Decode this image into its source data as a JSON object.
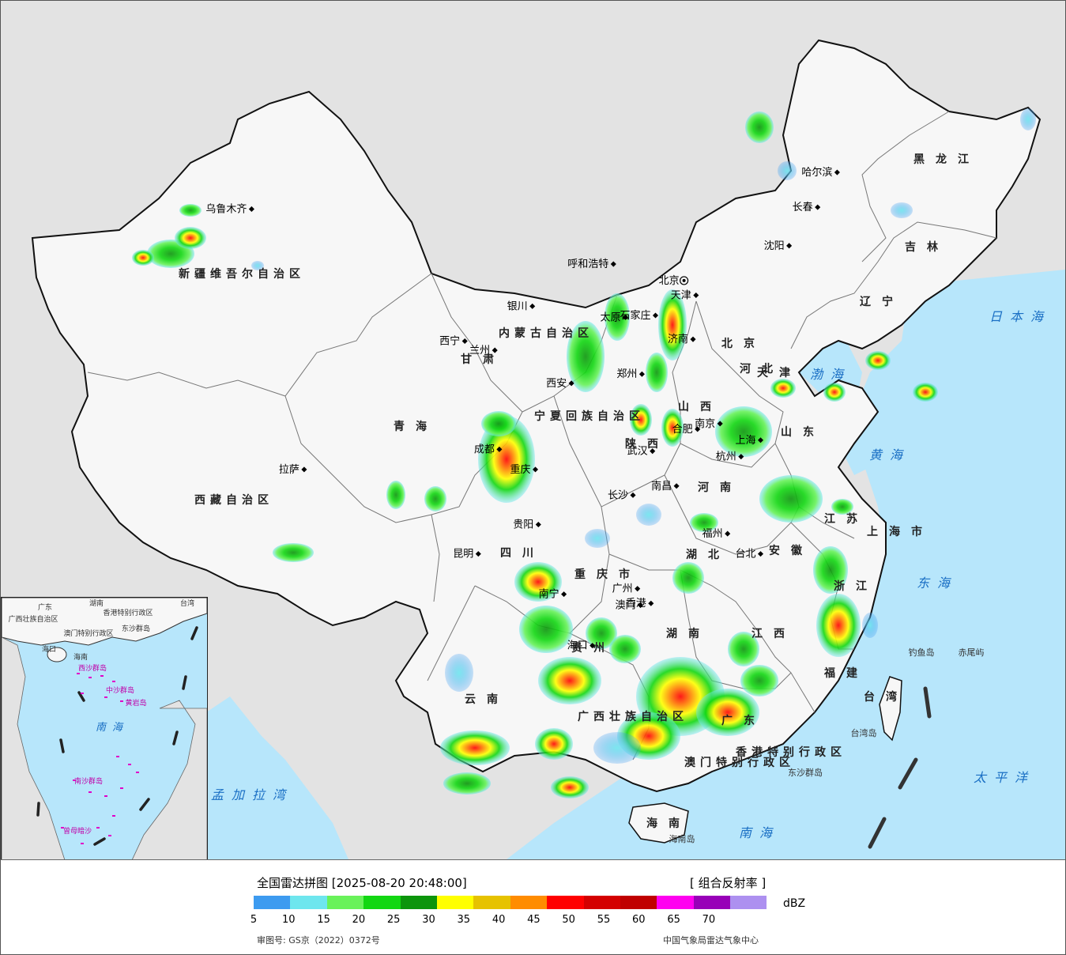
{
  "title": "全国雷达拼图 [2025-08-20 20:48:00]",
  "product": "[ 组合反射率 ]",
  "unit": "dBZ",
  "colorbar": {
    "colors": [
      "#3d9bf0",
      "#6ee6ee",
      "#69f25a",
      "#12d712",
      "#0c950c",
      "#ffff00",
      "#e6c200",
      "#ff8c00",
      "#ff0000",
      "#d40000",
      "#c00000",
      "#ff00f0",
      "#9800b8",
      "#ad90f0"
    ],
    "ticks": [
      "5",
      "10",
      "15",
      "20",
      "25",
      "30",
      "35",
      "40",
      "45",
      "50",
      "55",
      "60",
      "65",
      "70"
    ]
  },
  "review_number": "审图号: GS京（2022）0372号",
  "agency": "中国气象局雷达气象中心",
  "cities": [
    {
      "name": "乌鲁木齐",
      "x": 87.6,
      "y": 43.8
    },
    {
      "name": "拉萨",
      "x": 91.1,
      "y": 29.6
    },
    {
      "name": "西宁",
      "x": 101.8,
      "y": 36.6
    },
    {
      "name": "兰州",
      "x": 103.8,
      "y": 36.1
    },
    {
      "name": "银川",
      "x": 106.3,
      "y": 38.5
    },
    {
      "name": "呼和浩特",
      "x": 111.7,
      "y": 40.8
    },
    {
      "name": "北京",
      "x": 116.4,
      "y": 39.9
    },
    {
      "name": "天津",
      "x": 117.2,
      "y": 39.1
    },
    {
      "name": "石家庄",
      "x": 114.5,
      "y": 38.0
    },
    {
      "name": "太原",
      "x": 112.5,
      "y": 37.9
    },
    {
      "name": "济南",
      "x": 117.0,
      "y": 36.7
    },
    {
      "name": "郑州",
      "x": 113.6,
      "y": 34.8
    },
    {
      "name": "西安",
      "x": 108.9,
      "y": 34.3
    },
    {
      "name": "成都",
      "x": 104.1,
      "y": 30.7
    },
    {
      "name": "重庆",
      "x": 106.5,
      "y": 29.6
    },
    {
      "name": "武汉",
      "x": 114.3,
      "y": 30.6
    },
    {
      "name": "合肥",
      "x": 117.3,
      "y": 31.8
    },
    {
      "name": "南京",
      "x": 118.8,
      "y": 32.1
    },
    {
      "name": "上海",
      "x": 121.5,
      "y": 31.2
    },
    {
      "name": "杭州",
      "x": 120.2,
      "y": 30.3
    },
    {
      "name": "长沙",
      "x": 113.0,
      "y": 28.2
    },
    {
      "name": "南昌",
      "x": 115.9,
      "y": 28.7
    },
    {
      "name": "福州",
      "x": 119.3,
      "y": 26.1
    },
    {
      "name": "台北",
      "x": 121.5,
      "y": 25.0
    },
    {
      "name": "贵阳",
      "x": 106.7,
      "y": 26.6
    },
    {
      "name": "昆明",
      "x": 102.7,
      "y": 25.0
    },
    {
      "name": "南宁",
      "x": 108.4,
      "y": 22.8
    },
    {
      "name": "广州",
      "x": 113.3,
      "y": 23.1
    },
    {
      "name": "香港",
      "x": 114.2,
      "y": 22.3
    },
    {
      "name": "澳门",
      "x": 113.5,
      "y": 22.2
    },
    {
      "name": "海口",
      "x": 110.3,
      "y": 20.0
    },
    {
      "name": "沈阳",
      "x": 123.4,
      "y": 41.8
    },
    {
      "name": "长春",
      "x": 125.3,
      "y": 43.9
    },
    {
      "name": "哈尔滨",
      "x": 126.6,
      "y": 45.8
    }
  ],
  "regions": [
    "新疆维吾尔自治区",
    "西藏自治区",
    "青海",
    "甘肃",
    "内蒙古自治区",
    "宁夏回族自治区",
    "四川",
    "重庆市",
    "陕西",
    "山西",
    "河北",
    "河南",
    "湖北",
    "湖南",
    "贵州",
    "云南",
    "广西壮族自治区",
    "广东",
    "海南",
    "江西",
    "福建",
    "浙江",
    "安徽",
    "江苏",
    "山东",
    "辽宁",
    "吉林",
    "黑龙江",
    "台湾",
    "上海市",
    "北京",
    "天津",
    "香港特别行政区",
    "澳门特别行政区"
  ],
  "seas": [
    "渤海",
    "黄海",
    "东海",
    "南海",
    "日本海",
    "太平洋",
    "孟加拉湾"
  ],
  "islands": [
    "钓鱼岛",
    "赤尾屿",
    "台湾岛",
    "东沙群岛",
    "海南岛",
    "西沙群岛",
    "中沙群岛",
    "黄岩岛",
    "南沙群岛",
    "曾母暗沙"
  ],
  "inset": {
    "labels": [
      "广东",
      "广西壮族自治区",
      "湖南",
      "台湾",
      "香港特别行政区",
      "澳门特别行政区",
      "东沙群岛",
      "海南",
      "西沙群岛",
      "中沙群岛",
      "黄岩岛",
      "南海",
      "南沙群岛",
      "曾母暗沙",
      "海口"
    ]
  }
}
